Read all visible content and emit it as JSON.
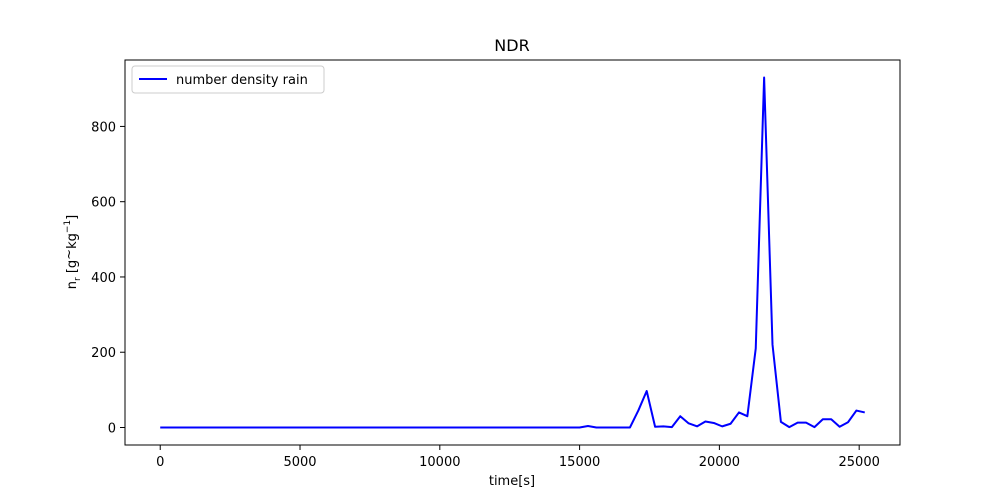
{
  "chart_data": {
    "type": "line",
    "title": "NDR",
    "xlabel": "time[s]",
    "ylabel": {
      "main": "n",
      "sub": "r",
      "open": " [g",
      "tilde": "~",
      "unit": "kg",
      "sup": "−1",
      "close": "]"
    },
    "xlim": [
      -1260,
      26460
    ],
    "ylim": [
      -46.5,
      976.5
    ],
    "xticks": [
      0,
      5000,
      10000,
      15000,
      20000,
      25000
    ],
    "xtick_labels": [
      "0",
      "5000",
      "10000",
      "15000",
      "20000",
      "25000"
    ],
    "yticks": [
      0,
      200,
      400,
      600,
      800
    ],
    "ytick_labels": [
      "0",
      "200",
      "400",
      "600",
      "800"
    ],
    "grid": false,
    "legend": {
      "placement": "upper-left"
    },
    "series": [
      {
        "name": "number density rain",
        "color": "#0000ff",
        "x": [
          0,
          15000,
          15300,
          15600,
          16800,
          17100,
          17400,
          17700,
          18000,
          18300,
          18600,
          18900,
          19200,
          19500,
          19800,
          20100,
          20400,
          20700,
          21000,
          21300,
          21600,
          21900,
          22200,
          22500,
          22800,
          23100,
          23400,
          23700,
          24000,
          24300,
          24600,
          24900,
          25200
        ],
        "y": [
          0,
          0,
          4,
          0,
          0,
          45,
          97,
          2,
          3,
          1,
          30,
          11,
          3,
          16,
          12,
          3,
          10,
          40,
          30,
          210,
          930,
          220,
          15,
          1,
          13,
          13,
          1,
          22,
          22,
          2,
          14,
          45,
          40
        ]
      }
    ]
  }
}
